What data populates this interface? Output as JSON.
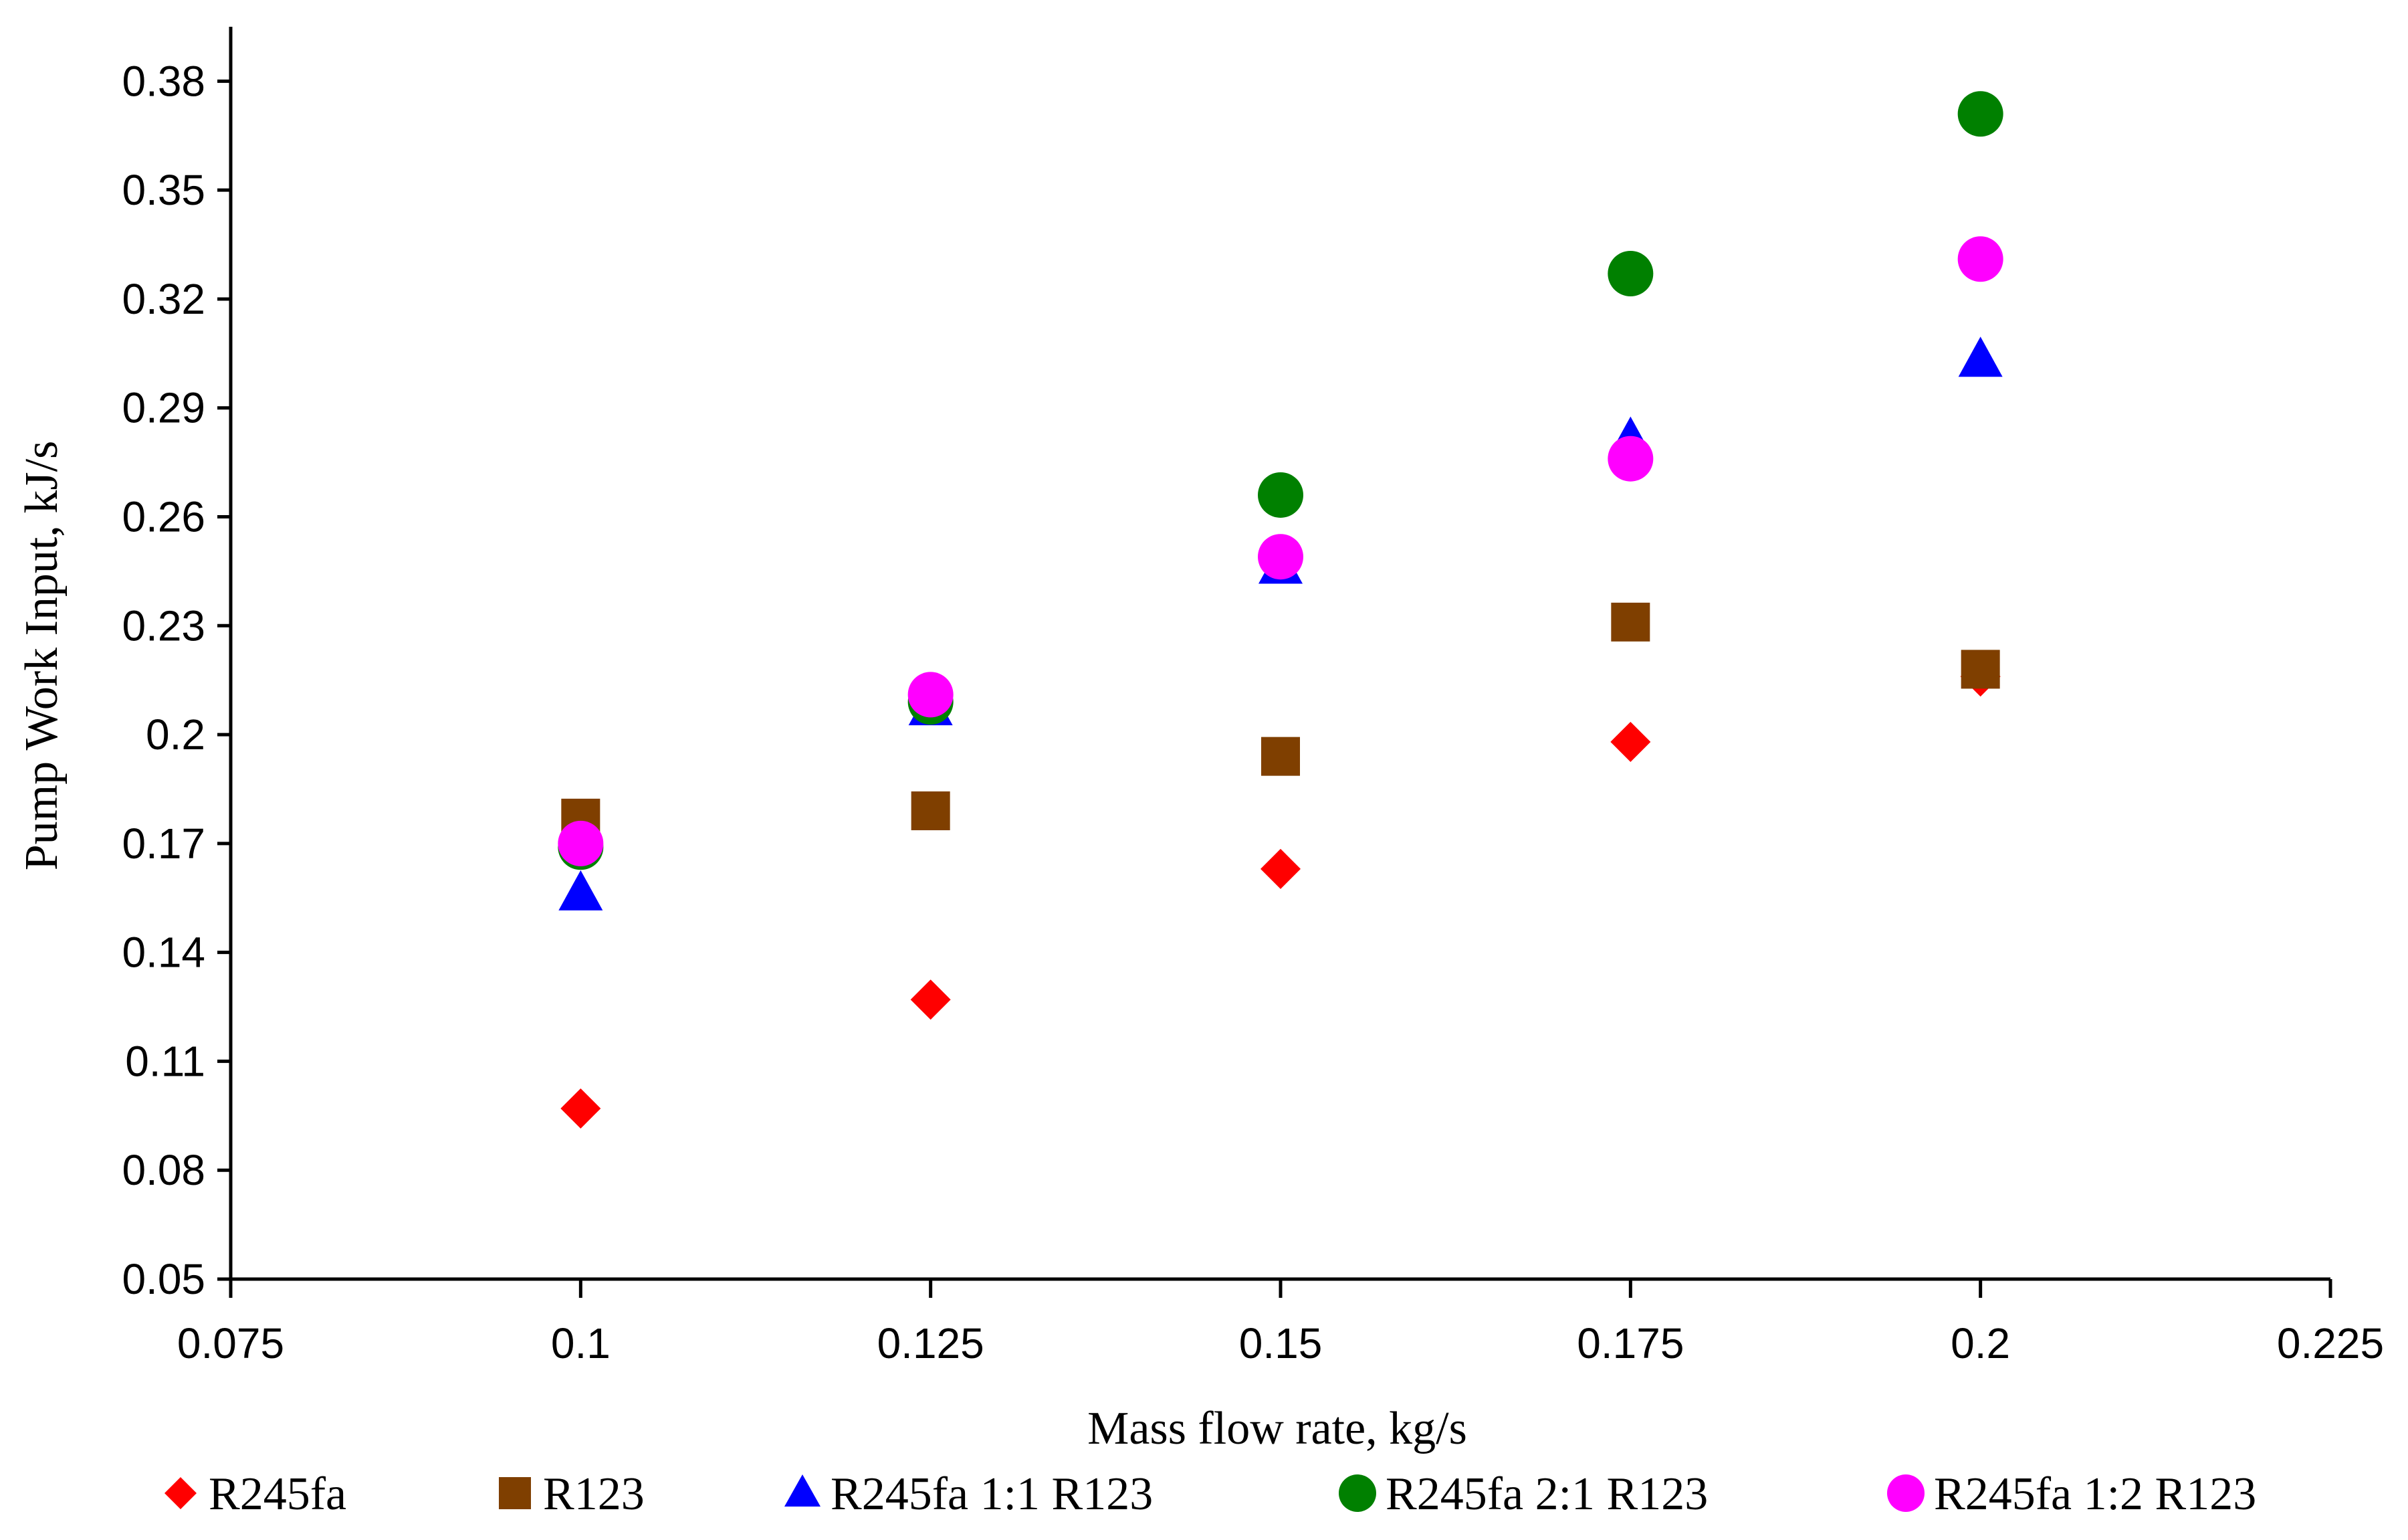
{
  "chart_data": {
    "type": "scatter",
    "title": "",
    "xlabel": "Mass flow rate, kg/s",
    "ylabel": "Pump Work Input, kJ/s",
    "xlim": [
      0.075,
      0.225
    ],
    "ylim": [
      0.05,
      0.395
    ],
    "xticks": [
      0.075,
      0.1,
      0.125,
      0.15,
      0.175,
      0.2,
      0.225
    ],
    "xtick_labels": [
      "0.075",
      "0.1",
      "0.125",
      "0.15",
      "0.175",
      "0.2",
      "0.225"
    ],
    "yticks": [
      0.05,
      0.08,
      0.11,
      0.14,
      0.17,
      0.2,
      0.23,
      0.26,
      0.29,
      0.32,
      0.35,
      0.38
    ],
    "ytick_labels": [
      "0.05",
      "0.08",
      "0.11",
      "0.14",
      "0.17",
      "0.2",
      "0.23",
      "0.26",
      "0.29",
      "0.32",
      "0.35",
      "0.38"
    ],
    "grid": false,
    "legend_position": "bottom",
    "x": [
      0.1,
      0.125,
      0.15,
      0.175,
      0.2
    ],
    "series": [
      {
        "name": "R245fa",
        "marker": "diamond",
        "color": "#FF0000",
        "values": [
          0.097,
          0.127,
          0.163,
          0.198,
          0.216
        ]
      },
      {
        "name": "R123",
        "marker": "square",
        "color": "#7F3F00",
        "values": [
          0.177,
          0.179,
          0.194,
          0.231,
          0.218
        ]
      },
      {
        "name": "R245fa 1:1 R123",
        "marker": "triangle",
        "color": "#0000FF",
        "values": [
          0.156,
          0.207,
          0.246,
          0.281,
          0.303
        ]
      },
      {
        "name": "R245fa 2:1 R123",
        "marker": "circle",
        "color": "#008000",
        "values": [
          0.169,
          0.209,
          0.266,
          0.327,
          0.371
        ]
      },
      {
        "name": "R245fa 1:2 R123",
        "marker": "circle",
        "color": "#FF00FF",
        "values": [
          0.17,
          0.211,
          0.249,
          0.276,
          0.331
        ]
      }
    ]
  }
}
